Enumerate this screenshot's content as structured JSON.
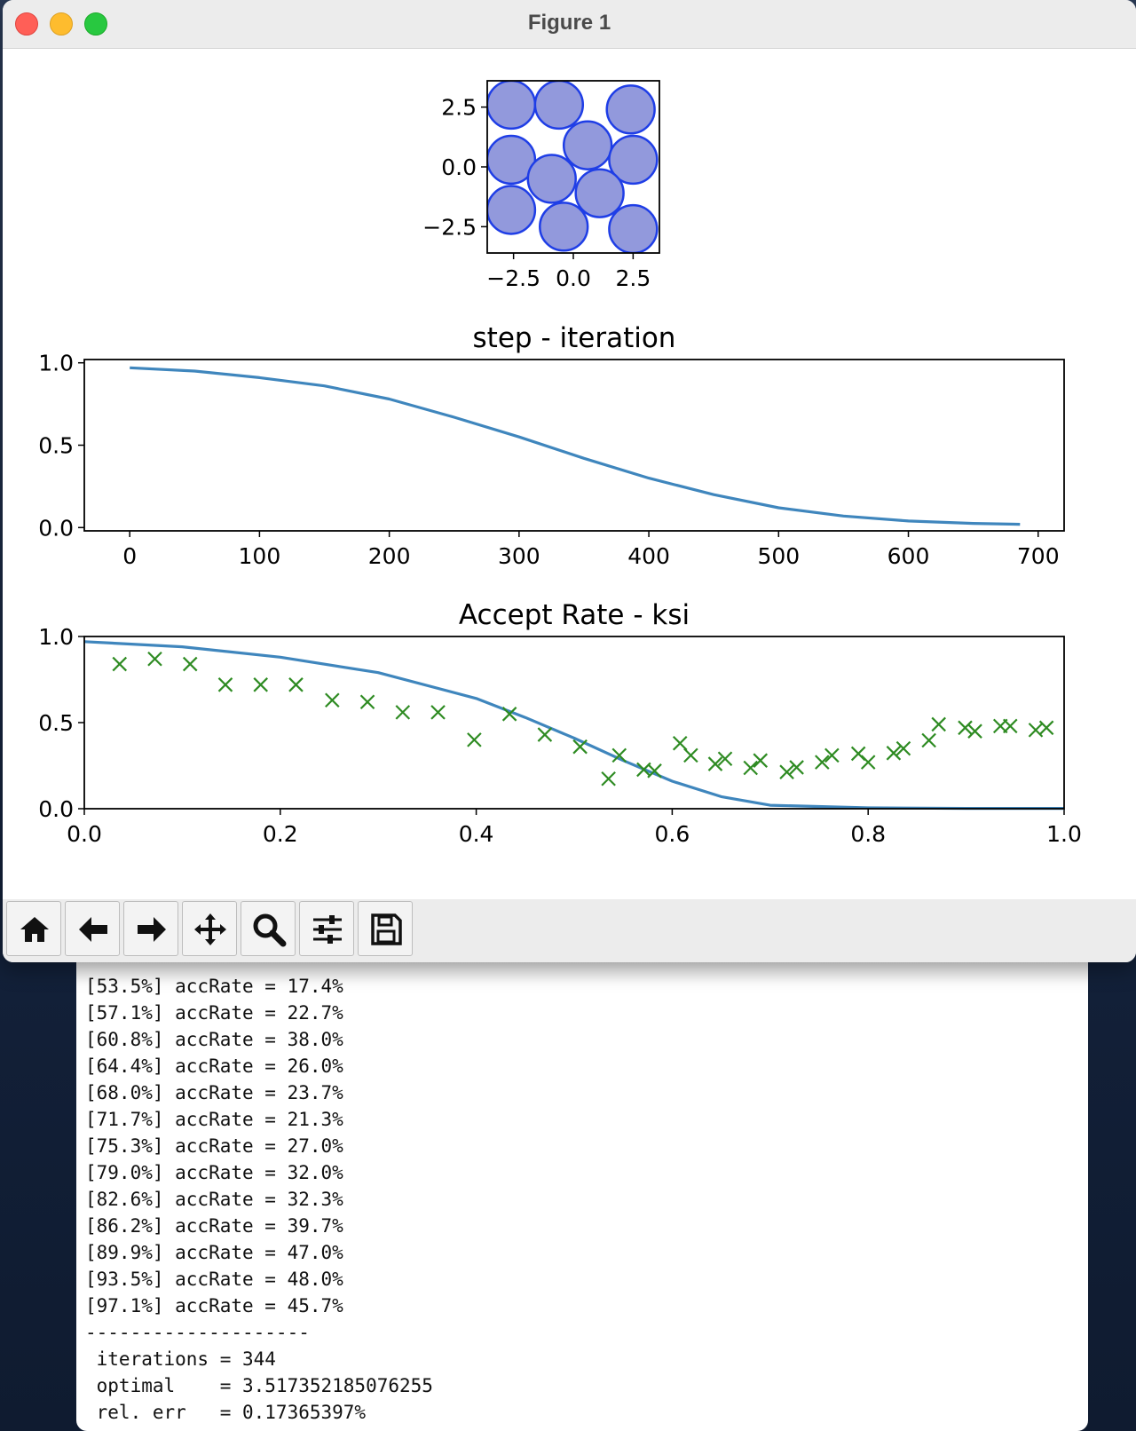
{
  "window": {
    "title": "Figure 1"
  },
  "toolbar": {
    "buttons": [
      {
        "icon": "home-icon"
      },
      {
        "icon": "back-icon"
      },
      {
        "icon": "forward-icon"
      },
      {
        "icon": "pan-icon"
      },
      {
        "icon": "zoom-icon"
      },
      {
        "icon": "configure-icon"
      },
      {
        "icon": "save-icon"
      }
    ]
  },
  "colors": {
    "circle_fill": "#9299dc",
    "circle_edge": "#1f3ee6",
    "line": "#3f86bd",
    "marker": "#2e8b22"
  },
  "chart_data": [
    {
      "type": "scatter",
      "title": "",
      "xlim": [
        -3.6,
        3.6
      ],
      "ylim": [
        -3.6,
        3.6
      ],
      "xticks": [
        "−2.5",
        "0.0",
        "2.5"
      ],
      "yticks": [
        "2.5",
        "0.0",
        "−2.5"
      ],
      "circle_radius": 1.0,
      "centers": [
        [
          -2.6,
          2.6
        ],
        [
          -0.6,
          2.6
        ],
        [
          2.4,
          2.4
        ],
        [
          -2.6,
          0.3
        ],
        [
          0.6,
          0.9
        ],
        [
          2.5,
          0.3
        ],
        [
          -0.9,
          -0.5
        ],
        [
          1.1,
          -1.1
        ],
        [
          -2.6,
          -1.8
        ],
        [
          -0.4,
          -2.5
        ],
        [
          2.5,
          -2.6
        ]
      ]
    },
    {
      "type": "line",
      "title": "step - iteration",
      "xlim": [
        -35,
        720
      ],
      "ylim": [
        -0.02,
        1.02
      ],
      "xticks": [
        "0",
        "100",
        "200",
        "300",
        "400",
        "500",
        "600",
        "700"
      ],
      "yticks": [
        "1.0",
        "0.5",
        "0.0"
      ],
      "x": [
        0,
        50,
        100,
        150,
        200,
        250,
        300,
        350,
        400,
        450,
        500,
        550,
        600,
        650,
        686
      ],
      "y": [
        0.97,
        0.95,
        0.91,
        0.86,
        0.78,
        0.67,
        0.55,
        0.42,
        0.3,
        0.2,
        0.12,
        0.07,
        0.04,
        0.025,
        0.02
      ]
    },
    {
      "type": "scatter",
      "title": "Accept Rate - ksi",
      "xlim": [
        0,
        1
      ],
      "ylim": [
        0,
        1
      ],
      "xticks": [
        "0.0",
        "0.2",
        "0.4",
        "0.6",
        "0.8",
        "1.0"
      ],
      "yticks": [
        "1.0",
        "0.5",
        "0.0"
      ],
      "line": {
        "x": [
          0,
          0.1,
          0.2,
          0.3,
          0.4,
          0.45,
          0.5,
          0.55,
          0.6,
          0.65,
          0.7,
          0.8,
          0.9,
          1.0
        ],
        "y": [
          0.97,
          0.94,
          0.88,
          0.79,
          0.64,
          0.53,
          0.41,
          0.28,
          0.16,
          0.07,
          0.02,
          0.005,
          0.002,
          0.002
        ]
      },
      "points": {
        "x": [
          0.036,
          0.072,
          0.108,
          0.144,
          0.18,
          0.216,
          0.253,
          0.289,
          0.325,
          0.361,
          0.398,
          0.434,
          0.47,
          0.506,
          0.535,
          0.546,
          0.571,
          0.582,
          0.608,
          0.619,
          0.644,
          0.654,
          0.68,
          0.69,
          0.717,
          0.727,
          0.753,
          0.763,
          0.79,
          0.8,
          0.826,
          0.836,
          0.862,
          0.872,
          0.899,
          0.909,
          0.935,
          0.945,
          0.971,
          0.982
        ],
        "y": [
          0.84,
          0.87,
          0.84,
          0.72,
          0.72,
          0.72,
          0.63,
          0.62,
          0.56,
          0.56,
          0.4,
          0.55,
          0.43,
          0.36,
          0.174,
          0.31,
          0.227,
          0.22,
          0.38,
          0.31,
          0.26,
          0.29,
          0.237,
          0.28,
          0.213,
          0.24,
          0.27,
          0.31,
          0.32,
          0.27,
          0.323,
          0.35,
          0.397,
          0.49,
          0.47,
          0.45,
          0.48,
          0.48,
          0.457,
          0.47
        ]
      }
    }
  ],
  "terminal": {
    "lines": [
      "[53.5%] accRate = 17.4%",
      "[57.1%] accRate = 22.7%",
      "[60.8%] accRate = 38.0%",
      "[64.4%] accRate = 26.0%",
      "[68.0%] accRate = 23.7%",
      "[71.7%] accRate = 21.3%",
      "[75.3%] accRate = 27.0%",
      "[79.0%] accRate = 32.0%",
      "[82.6%] accRate = 32.3%",
      "[86.2%] accRate = 39.7%",
      "[89.9%] accRate = 47.0%",
      "[93.5%] accRate = 48.0%",
      "[97.1%] accRate = 45.7%",
      "--------------------",
      " iterations = 344",
      " optimal    = 3.517352185076255",
      " rel. err   = 0.17365397%"
    ]
  }
}
